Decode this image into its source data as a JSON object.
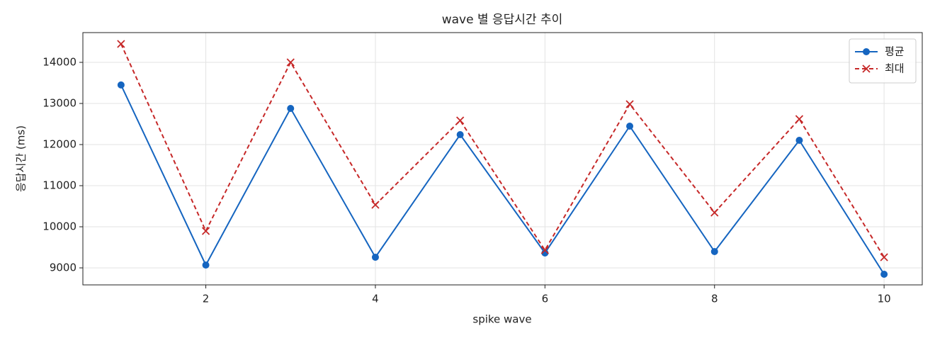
{
  "chart_data": {
    "type": "line",
    "title": "wave 별 응답시간 추이",
    "x_label": "spike wave",
    "y_label": "응답시간 (ms)",
    "x": [
      1,
      2,
      3,
      4,
      5,
      6,
      7,
      8,
      9,
      10
    ],
    "series": [
      {
        "name": "평균",
        "color": "#1565c0",
        "linestyle": "solid",
        "marker": "circle",
        "values": [
          13450,
          9069,
          12879,
          9259,
          12241,
          9362,
          12448,
          9397,
          12103,
          8845
        ]
      },
      {
        "name": "최대",
        "color": "#c62828",
        "linestyle": "dashed",
        "marker": "x",
        "values": [
          14448,
          9897,
          14000,
          10534,
          12586,
          9431,
          12983,
          10345,
          12621,
          9259
        ]
      }
    ],
    "xlim": [
      0.55,
      10.45
    ],
    "xticks": [
      2,
      4,
      6,
      8,
      10
    ],
    "ylim": [
      8586,
      14724
    ],
    "yticks": [
      9000,
      10000,
      11000,
      12000,
      13000,
      14000
    ],
    "grid": true,
    "legend": "upper right"
  }
}
